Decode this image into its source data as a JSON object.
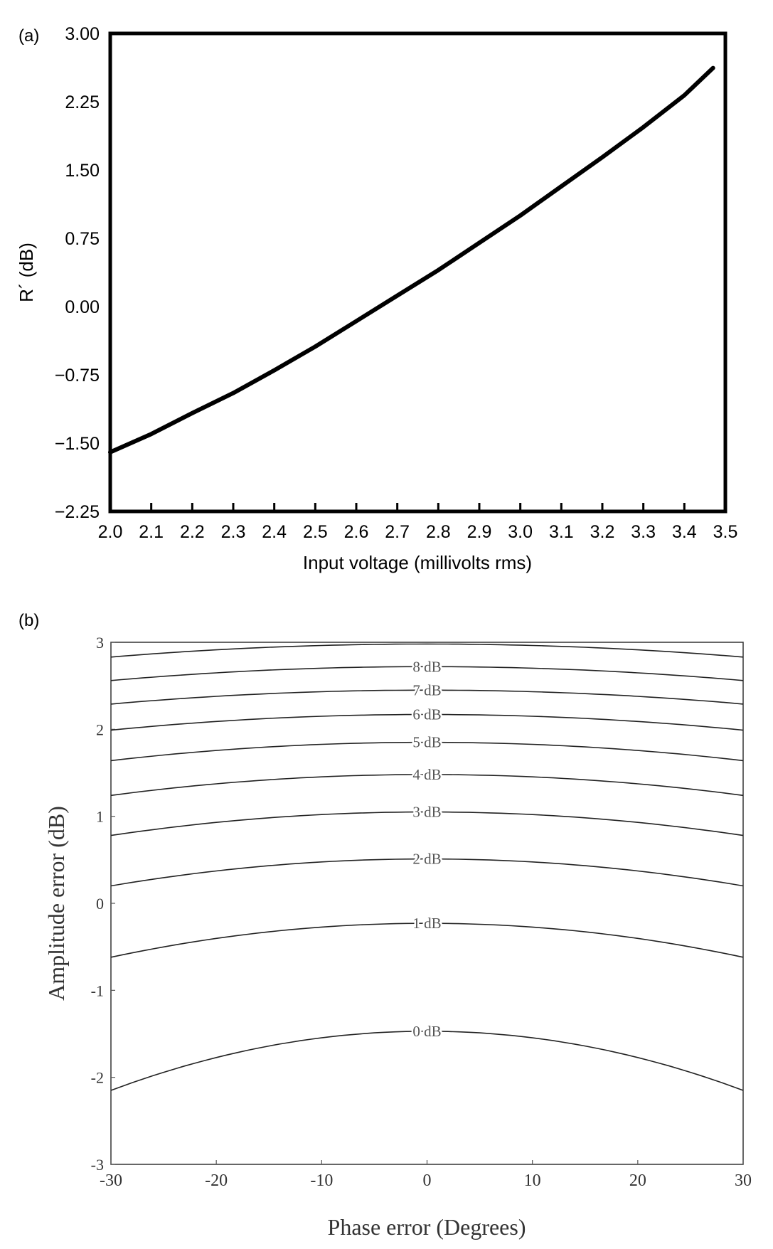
{
  "chart_data": [
    {
      "panel_label": "(a)",
      "type": "line",
      "xlabel": "Input voltage (millivolts rms)",
      "ylabel": "R´ (dB)",
      "xlim": [
        2.0,
        3.5
      ],
      "ylim": [
        -2.25,
        3.0
      ],
      "x_ticks": [
        "2.0",
        "2.1",
        "2.2",
        "2.3",
        "2.4",
        "2.5",
        "2.6",
        "2.7",
        "2.8",
        "2.9",
        "3.0",
        "3.1",
        "3.2",
        "3.3",
        "3.4",
        "3.5"
      ],
      "y_ticks": [
        "3.00",
        "2.25",
        "1.50",
        "0.75",
        "0.00",
        "−0.75",
        "−1.50",
        "−2.25"
      ],
      "grid": false,
      "series": [
        {
          "x": [
            2.0,
            2.1,
            2.2,
            2.3,
            2.4,
            2.5,
            2.6,
            2.7,
            2.8,
            2.9,
            3.0,
            3.1,
            3.2,
            3.3,
            3.4,
            3.47
          ],
          "y": [
            -1.6,
            -1.4,
            -1.17,
            -0.95,
            -0.7,
            -0.44,
            -0.16,
            0.12,
            0.4,
            0.7,
            1.0,
            1.32,
            1.64,
            1.97,
            2.32,
            2.62
          ]
        }
      ]
    },
    {
      "panel_label": "(b)",
      "type": "line",
      "xlabel": "Phase error (Degrees)",
      "ylabel": "Amplitude error (dB)",
      "xlim": [
        -30,
        30
      ],
      "ylim": [
        -3,
        3
      ],
      "x_ticks": [
        "-30",
        "-20",
        "-10",
        "0",
        "10",
        "20",
        "30"
      ],
      "y_ticks": [
        "3",
        "2",
        "1",
        "0",
        "-1",
        "-2",
        "-3"
      ],
      "grid": false,
      "contours": [
        {
          "label": "0 dB",
          "center": -1.47,
          "edge": -2.15
        },
        {
          "label": "1 dB",
          "center": -0.23,
          "edge": -0.62
        },
        {
          "label": "2 dB",
          "center": 0.51,
          "edge": 0.2
        },
        {
          "label": "3 dB",
          "center": 1.05,
          "edge": 0.78
        },
        {
          "label": "4 dB",
          "center": 1.48,
          "edge": 1.24
        },
        {
          "label": "5 dB",
          "center": 1.85,
          "edge": 1.64
        },
        {
          "label": "6 dB",
          "center": 2.17,
          "edge": 1.99
        },
        {
          "label": "7 dB",
          "center": 2.45,
          "edge": 2.29
        },
        {
          "label": "8 dB",
          "center": 2.72,
          "edge": 2.56
        },
        {
          "label": "",
          "center": 2.98,
          "edge": 2.83
        }
      ]
    }
  ]
}
